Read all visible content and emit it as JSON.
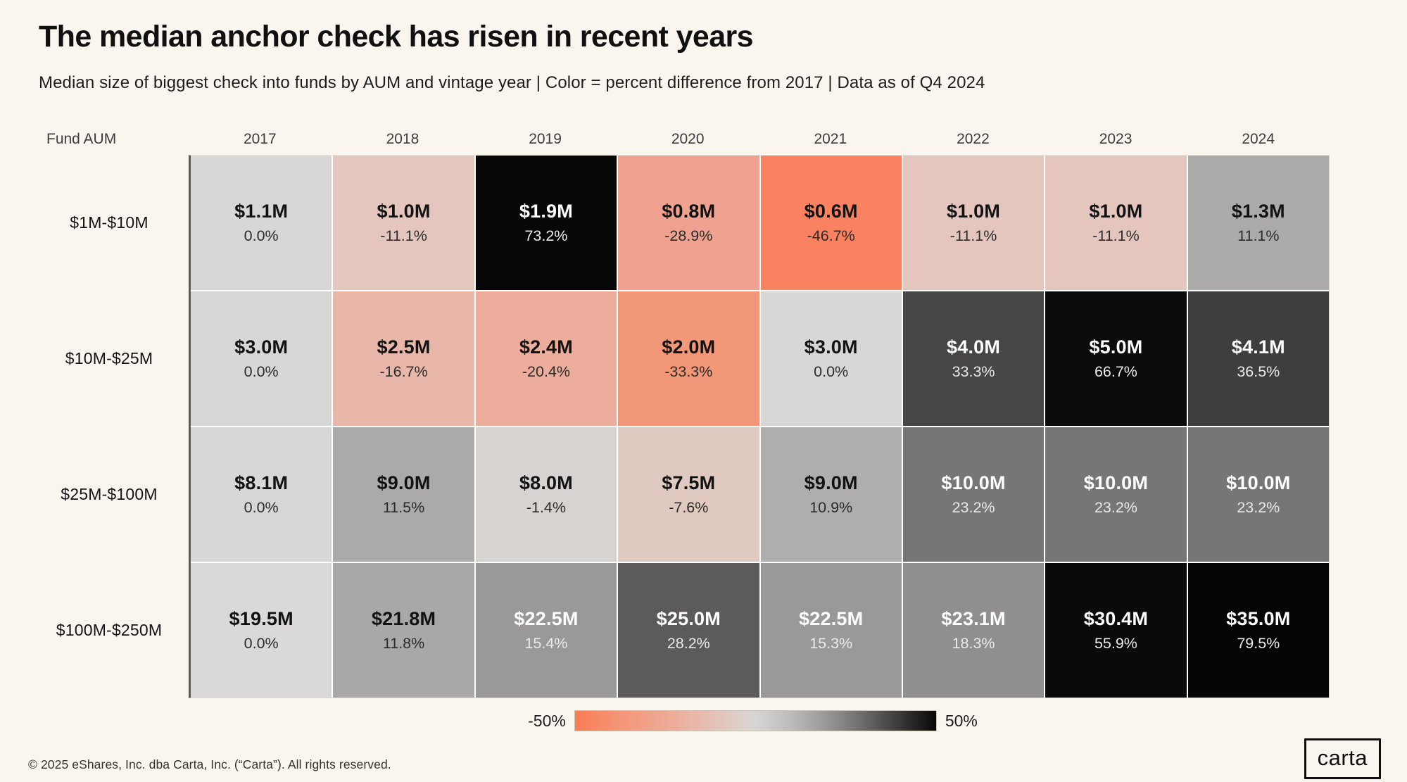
{
  "page": {
    "title": "The median anchor check has risen in recent years",
    "subtitle": "Median size of biggest check  into funds by AUM and vintage year | Color = percent difference from 2017 | Data as of Q4 2024",
    "footer": "© 2025 eShares, Inc. dba Carta, Inc. (“Carta”). All rights reserved.",
    "logo_text": "carta",
    "background_color": "#FAF5EE"
  },
  "chart_data": {
    "type": "heatmap",
    "title": "The median anchor check has risen in recent years",
    "subtitle": "Median size of biggest check into funds by AUM and vintage year | Color = percent difference from 2017 | Data as of Q4 2024",
    "corner_label": "Fund AUM",
    "columns": [
      "2017",
      "2018",
      "2019",
      "2020",
      "2021",
      "2022",
      "2023",
      "2024"
    ],
    "color_scale": {
      "meaning": "percent difference from 2017",
      "min": -50,
      "max": 50,
      "min_color": "#FA7C52",
      "mid_color": "#D6D5D3",
      "max_color": "#070707"
    },
    "legend": {
      "min_label": "-50%",
      "max_label": "50%"
    },
    "rows": [
      {
        "label": "$1M-$10M",
        "cells": [
          {
            "value": "$1.1M",
            "pct": "0.0%",
            "bg": "#D8D7D5",
            "text": "dark"
          },
          {
            "value": "$1.0M",
            "pct": "-11.1%",
            "bg": "#E4C6BE",
            "text": "dark"
          },
          {
            "value": "$1.9M",
            "pct": "73.2%",
            "bg": "#070707",
            "text": "light"
          },
          {
            "value": "$0.8M",
            "pct": "-28.9%",
            "bg": "#EEA28F",
            "text": "dark"
          },
          {
            "value": "$0.6M",
            "pct": "-46.7%",
            "bg": "#FA8260",
            "text": "dark"
          },
          {
            "value": "$1.0M",
            "pct": "-11.1%",
            "bg": "#E4C6BE",
            "text": "dark"
          },
          {
            "value": "$1.0M",
            "pct": "-11.1%",
            "bg": "#E4C6BE",
            "text": "dark"
          },
          {
            "value": "$1.3M",
            "pct": "11.1%",
            "bg": "#ACABA9",
            "text": "dark"
          }
        ]
      },
      {
        "label": "$10M-$25M",
        "cells": [
          {
            "value": "$3.0M",
            "pct": "0.0%",
            "bg": "#D8D7D5",
            "text": "dark"
          },
          {
            "value": "$2.5M",
            "pct": "-16.7%",
            "bg": "#E9B7AA",
            "text": "dark"
          },
          {
            "value": "$2.4M",
            "pct": "-20.4%",
            "bg": "#ECAD9C",
            "text": "dark"
          },
          {
            "value": "$2.0M",
            "pct": "-33.3%",
            "bg": "#F29878",
            "text": "dark"
          },
          {
            "value": "$3.0M",
            "pct": "0.0%",
            "bg": "#D8D7D5",
            "text": "dark"
          },
          {
            "value": "$4.0M",
            "pct": "33.3%",
            "bg": "#474645",
            "text": "light"
          },
          {
            "value": "$5.0M",
            "pct": "66.7%",
            "bg": "#0B0B0B",
            "text": "light"
          },
          {
            "value": "$4.1M",
            "pct": "36.5%",
            "bg": "#3F3E3E",
            "text": "light"
          }
        ]
      },
      {
        "label": "$25M-$100M",
        "cells": [
          {
            "value": "$8.1M",
            "pct": "0.0%",
            "bg": "#D8D7D5",
            "text": "dark"
          },
          {
            "value": "$9.0M",
            "pct": "11.5%",
            "bg": "#ABAAA8",
            "text": "dark"
          },
          {
            "value": "$8.0M",
            "pct": "-1.4%",
            "bg": "#D7D3D0",
            "text": "dark"
          },
          {
            "value": "$7.5M",
            "pct": "-7.6%",
            "bg": "#DFC9C1",
            "text": "dark"
          },
          {
            "value": "$9.0M",
            "pct": "10.9%",
            "bg": "#AFAEAC",
            "text": "dark"
          },
          {
            "value": "$10.0M",
            "pct": "23.2%",
            "bg": "#777675",
            "text": "light"
          },
          {
            "value": "$10.0M",
            "pct": "23.2%",
            "bg": "#777675",
            "text": "light"
          },
          {
            "value": "$10.0M",
            "pct": "23.2%",
            "bg": "#777675",
            "text": "light"
          }
        ]
      },
      {
        "label": "$100M-$250M",
        "cells": [
          {
            "value": "$19.5M",
            "pct": "0.0%",
            "bg": "#DAD9D7",
            "text": "dark"
          },
          {
            "value": "$21.8M",
            "pct": "11.8%",
            "bg": "#A9A8A6",
            "text": "dark"
          },
          {
            "value": "$22.5M",
            "pct": "15.4%",
            "bg": "#9A9997",
            "text": "light"
          },
          {
            "value": "$25.0M",
            "pct": "28.2%",
            "bg": "#5C5B5A",
            "text": "light"
          },
          {
            "value": "$22.5M",
            "pct": "15.3%",
            "bg": "#9A9997",
            "text": "light"
          },
          {
            "value": "$23.1M",
            "pct": "18.3%",
            "bg": "#908F8D",
            "text": "light"
          },
          {
            "value": "$30.4M",
            "pct": "55.9%",
            "bg": "#0A0A0A",
            "text": "light"
          },
          {
            "value": "$35.0M",
            "pct": "79.5%",
            "bg": "#050505",
            "text": "light"
          }
        ]
      }
    ]
  }
}
